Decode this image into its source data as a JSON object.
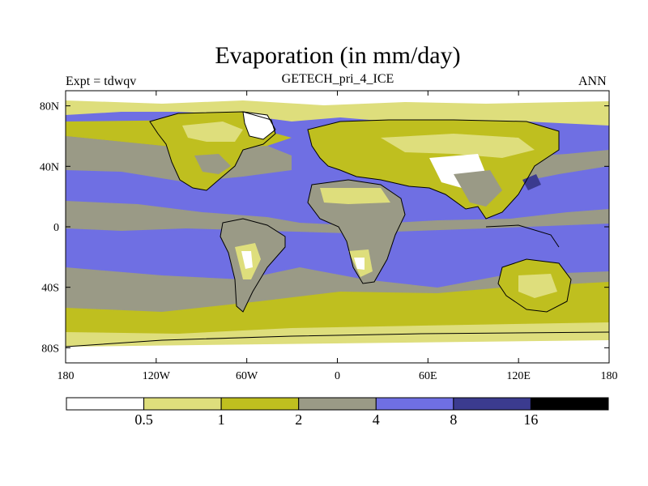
{
  "title": "Evaporation (in mm/day)",
  "subtitle": "GETECH_pri_4_ICE",
  "left_label": "Expt = tdwqv",
  "right_label": "ANN",
  "colors": {
    "lt_0_5": "#ffffff",
    "c_0_5_1": "#dede7c",
    "c_1_2": "#bfbf1f",
    "c_2_4": "#9a9a86",
    "c_4_8": "#6f6fe3",
    "c_8_16": "#3b3b8f",
    "gt_16": "#000000",
    "coast": "#000000"
  },
  "chart_data": {
    "type": "heatmap",
    "projection": "cylindrical-equidistant",
    "x_range": [
      -180,
      180
    ],
    "y_range": [
      -90,
      90
    ],
    "x_ticks": [
      {
        "value": -180,
        "label": "180"
      },
      {
        "value": -120,
        "label": "120W"
      },
      {
        "value": -60,
        "label": "60W"
      },
      {
        "value": 0,
        "label": "0"
      },
      {
        "value": 60,
        "label": "60E"
      },
      {
        "value": 120,
        "label": "120E"
      },
      {
        "value": 180,
        "label": "180"
      }
    ],
    "y_ticks": [
      {
        "value": 80,
        "label": "80N"
      },
      {
        "value": 40,
        "label": "40N"
      },
      {
        "value": 0,
        "label": "0"
      },
      {
        "value": -40,
        "label": "40S"
      },
      {
        "value": -80,
        "label": "80S"
      }
    ],
    "colorbar": {
      "levels": [
        {
          "value": 0.5,
          "label": "0.5"
        },
        {
          "value": 1,
          "label": "1"
        },
        {
          "value": 2,
          "label": "2"
        },
        {
          "value": 4,
          "label": "4"
        },
        {
          "value": 8,
          "label": "8"
        },
        {
          "value": 16,
          "label": "16"
        }
      ],
      "colors": [
        "#ffffff",
        "#dede7c",
        "#bfbf1f",
        "#9a9a86",
        "#6f6fe3",
        "#3b3b8f",
        "#000000"
      ]
    }
  }
}
